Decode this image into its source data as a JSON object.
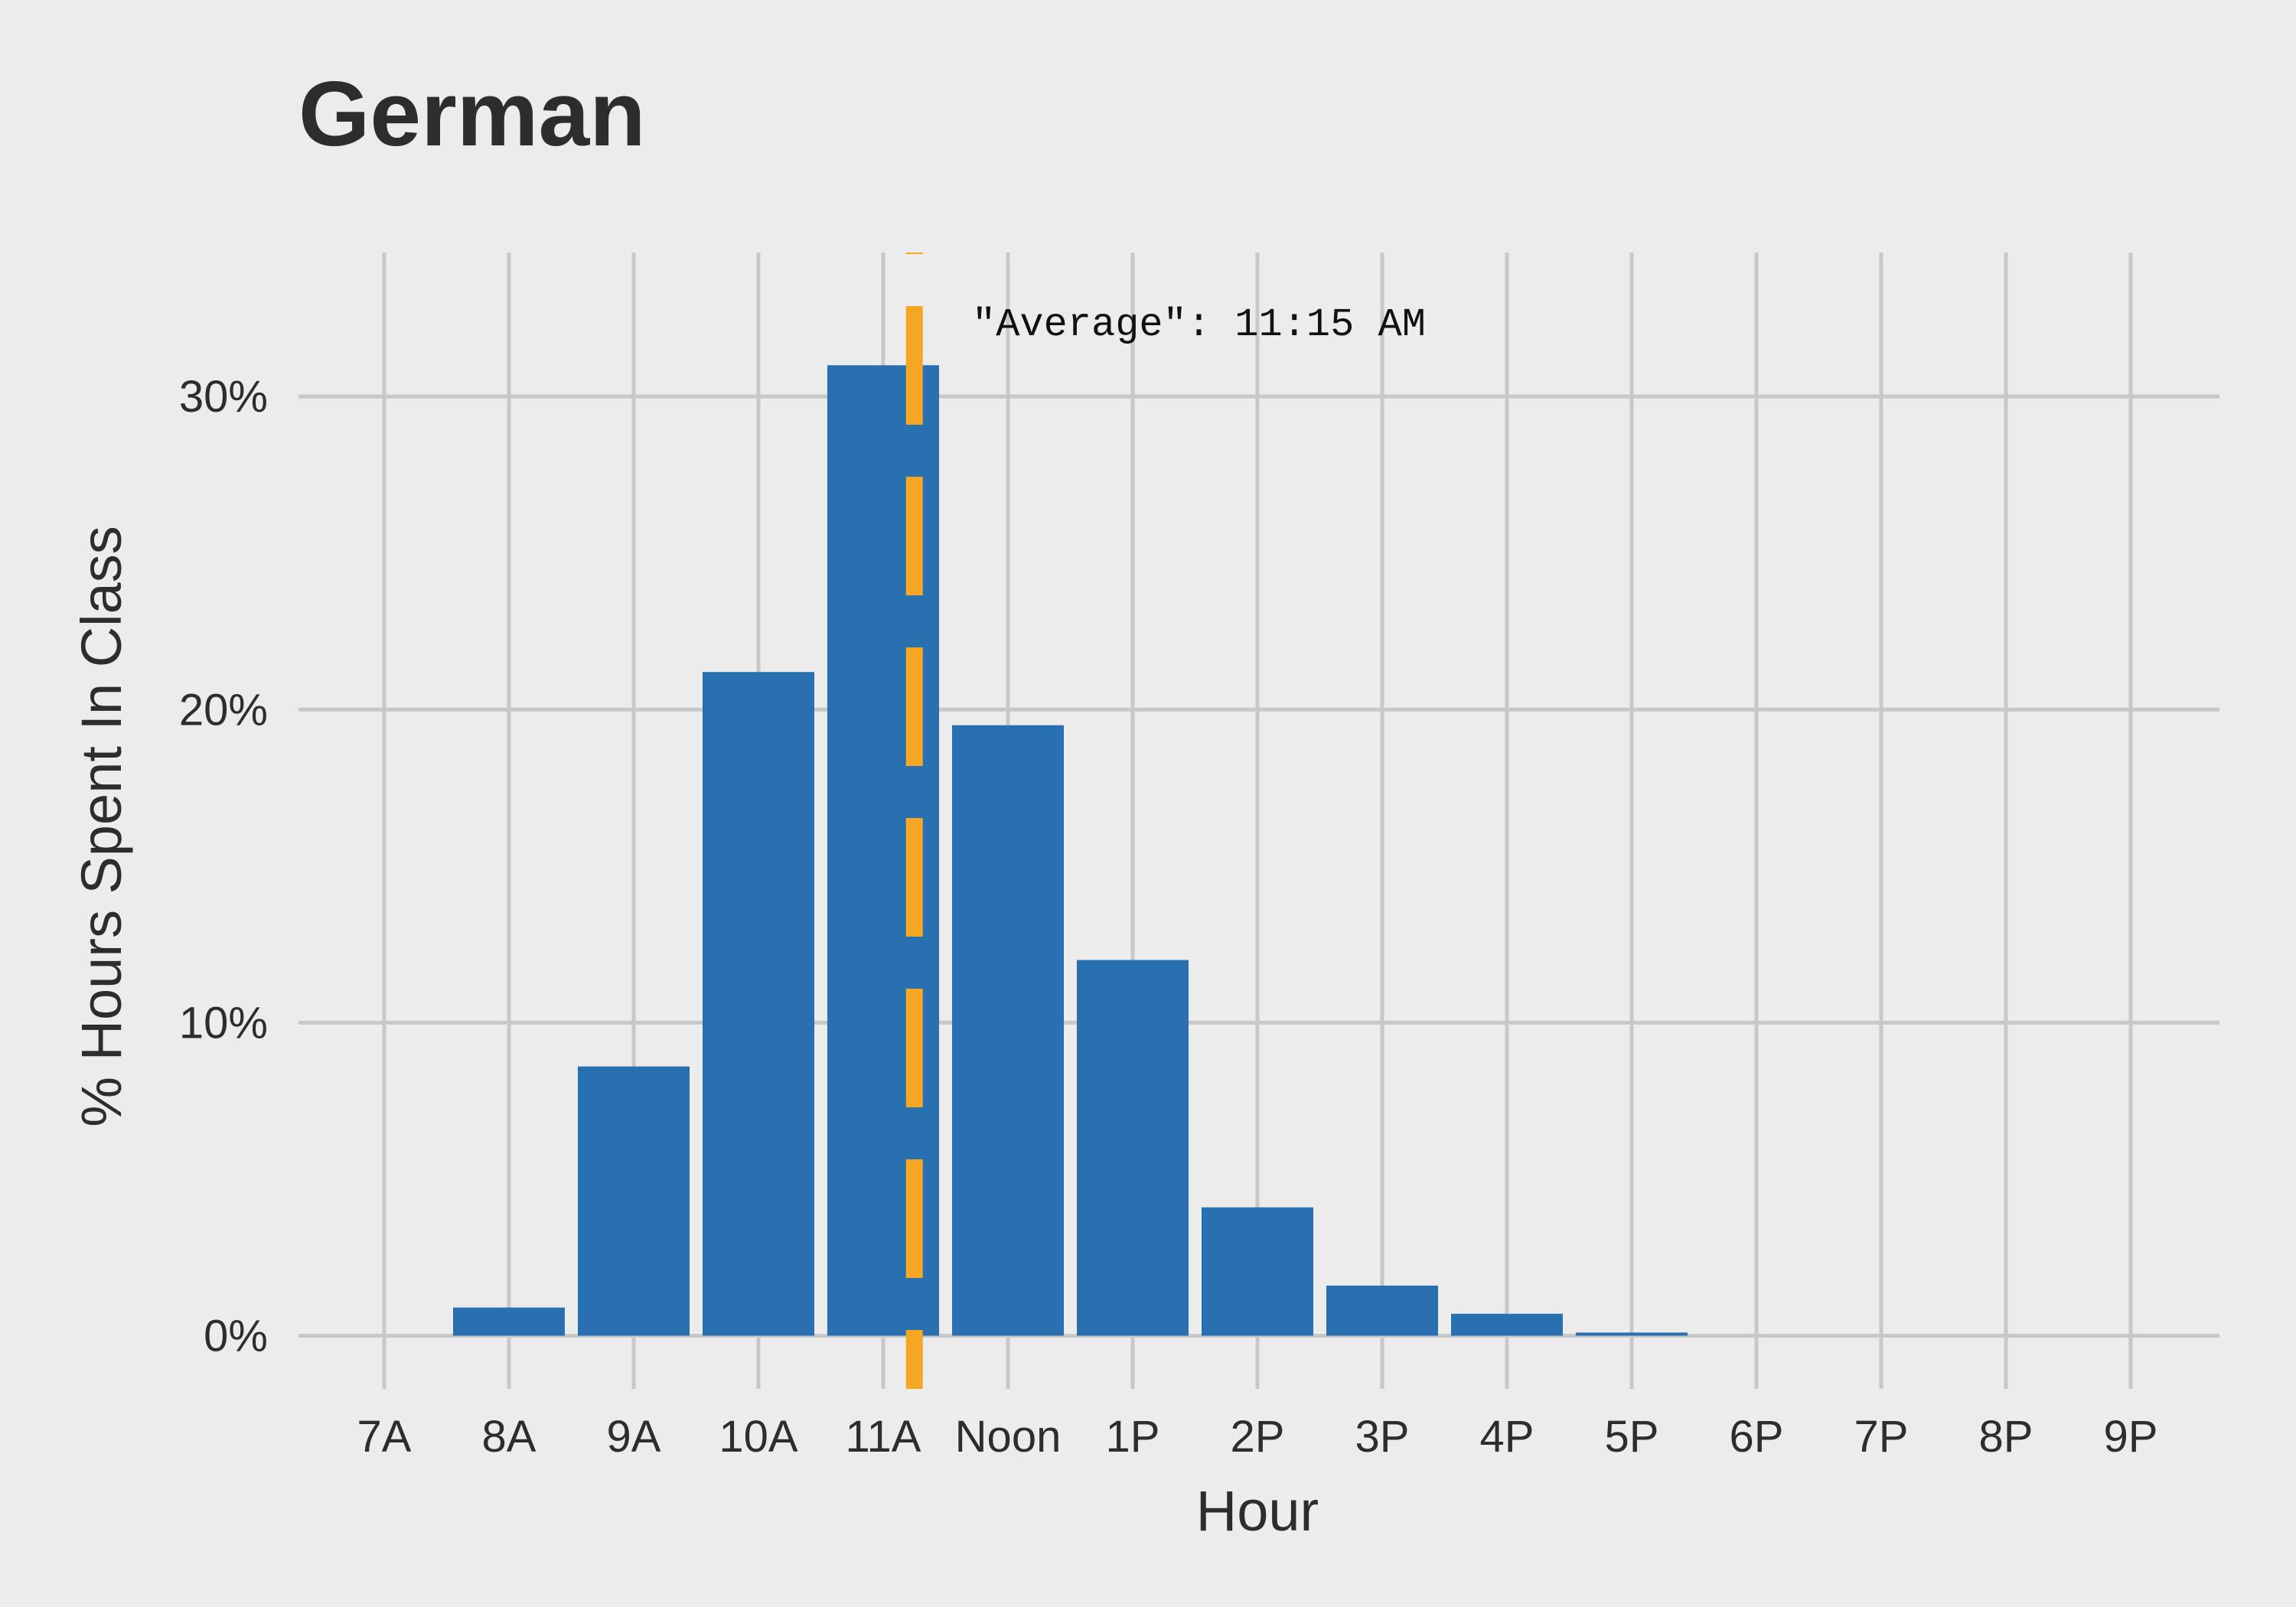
{
  "chart_data": {
    "type": "bar",
    "title": "German",
    "xlabel": "Hour",
    "ylabel": "% Hours Spent In Class",
    "categories": [
      "7A",
      "8A",
      "9A",
      "10A",
      "11A",
      "Noon",
      "1P",
      "2P",
      "3P",
      "4P",
      "5P",
      "6P",
      "7P",
      "8P",
      "9P"
    ],
    "values": [
      0,
      0.9,
      8.6,
      21.2,
      31.0,
      19.5,
      12.0,
      4.1,
      1.6,
      0.7,
      0.1,
      0,
      0,
      0,
      0
    ],
    "value_unit": "percent",
    "yticks": [
      0,
      10,
      20,
      30
    ],
    "ytick_labels": [
      "0%",
      "10%",
      "20%",
      "30%"
    ],
    "ylim": [
      -1.7,
      34.6
    ],
    "grid": true,
    "legend": "none",
    "bar_color": "#2870b0",
    "reference_line": {
      "label": "\"Average\": 11:15 AM",
      "x_hour": 11.25,
      "style": "dashed",
      "color": "#f5a623"
    }
  },
  "colors": {
    "background": "#ececec",
    "grid": "#c8c8c8",
    "text": "#2d2d2d"
  }
}
